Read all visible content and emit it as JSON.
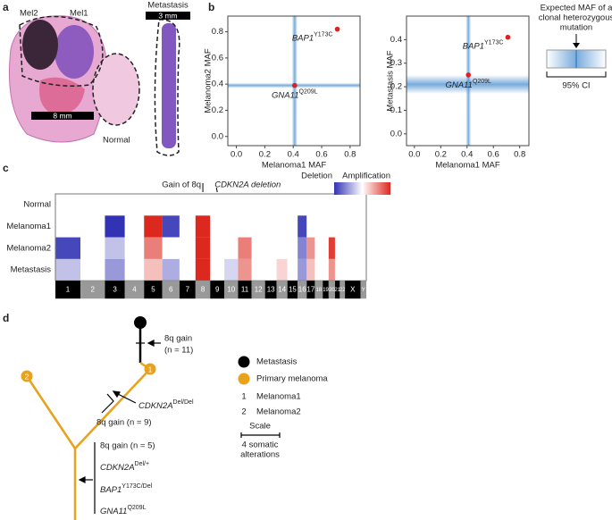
{
  "panel_labels": [
    "a",
    "b",
    "c",
    "d"
  ],
  "panel_a": {
    "labels": [
      "Mel2",
      "Mel1",
      "Normal",
      "Metastasis"
    ],
    "scale_bars": [
      "8 mm",
      "3 mm"
    ]
  },
  "chart_data": [
    {
      "type": "scatter",
      "xlabel": "Melanoma1 MAF",
      "ylabel": "Melanoma2 MAF",
      "xlim": [
        -0.06,
        0.87
      ],
      "ylim": [
        -0.07,
        0.92
      ],
      "xticks": [
        {
          "value": 0,
          "label": "0.0"
        },
        0.2,
        0.4,
        0.6,
        0.8
      ],
      "yticks": [
        {
          "value": 0,
          "label": "0.0"
        },
        0.2,
        0.4,
        0.6,
        0.8
      ],
      "x": [
        0.41,
        0.71
      ],
      "values": [
        0.39,
        0.82
      ],
      "color": "#e02020",
      "point_labels": [
        "GNA11",
        "BAP1"
      ],
      "point_label_sups": [
        "Q209L",
        "Y173C"
      ],
      "ci_x": [
        0.39,
        0.43
      ],
      "ci_y": [
        0.37,
        0.41
      ]
    },
    {
      "type": "scatter",
      "xlabel": "Melanoma1 MAF",
      "ylabel": "Metastasis MAF",
      "xlim": [
        -0.06,
        0.87
      ],
      "ylim": [
        -0.05,
        0.5
      ],
      "xticks": [
        {
          "value": 0,
          "label": "0.0"
        },
        0.2,
        0.4,
        0.6,
        0.8
      ],
      "yticks": [
        {
          "value": 0,
          "label": "0.0"
        },
        0.1,
        0.2,
        0.3,
        0.4
      ],
      "x": [
        0.41,
        0.71
      ],
      "values": [
        0.25,
        0.41
      ],
      "color": "#e02020",
      "point_labels": [
        "GNA11",
        "BAP1"
      ],
      "point_label_sups": [
        "Q209L",
        "Y173C"
      ],
      "ci_x": [
        0.39,
        0.43
      ],
      "ci_y": [
        0.17,
        0.25
      ]
    },
    {
      "type": "heatmap",
      "rows": [
        "Normal",
        "Melanoma1",
        "Melanoma2",
        "Metastasis"
      ],
      "categories": [
        "1",
        "2",
        "3",
        "4",
        "5",
        "6",
        "7",
        "8",
        "9",
        "10",
        "11",
        "12",
        "13",
        "14",
        "15",
        "16",
        "17",
        "18",
        "19",
        "20",
        "21",
        "22",
        "X",
        "Y"
      ],
      "chrom_sizes": [
        249,
        243,
        198,
        191,
        181,
        171,
        159,
        146,
        141,
        136,
        135,
        133,
        115,
        107,
        102,
        90,
        81,
        78,
        59,
        63,
        48,
        51,
        155,
        57
      ],
      "values": [
        [
          0,
          0,
          0,
          0,
          0,
          0,
          0,
          0,
          0,
          0,
          0,
          0,
          0,
          0,
          0,
          0,
          0,
          0,
          0,
          0,
          0,
          0,
          0,
          0
        ],
        [
          0,
          0,
          -1,
          0,
          1,
          -0.9,
          0,
          1,
          0,
          0,
          0,
          0,
          0,
          0,
          0,
          -0.9,
          0,
          0,
          0,
          0,
          0,
          0,
          0,
          0
        ],
        [
          -0.9,
          0,
          -0.3,
          0,
          0.6,
          0,
          0,
          1,
          0,
          0,
          0.6,
          0,
          0,
          0,
          0,
          -0.6,
          0.5,
          0,
          0,
          0.9,
          0,
          0,
          0,
          0
        ],
        [
          -0.3,
          0,
          -0.5,
          0,
          0.3,
          -0.4,
          0,
          1,
          0,
          -0.2,
          0.5,
          0,
          0,
          0.2,
          0,
          -0.5,
          0.3,
          0,
          0,
          0.5,
          0,
          0,
          0,
          0
        ]
      ],
      "legend_labels": [
        "Deletion",
        "Amplification"
      ],
      "annotations": [
        "Gain of 8q",
        "CDKN2A deletion"
      ]
    }
  ],
  "maf_legend": {
    "title_lines": [
      "Expected MAF of a",
      "clonal heterozygous",
      "mutation"
    ],
    "ci_label": "95% CI"
  },
  "panel_d": {
    "node_labels": [
      "1",
      "2"
    ],
    "events_met": [
      "8q gain",
      "(n = 11)"
    ],
    "events_branch": {
      "gene": "CDKN2A",
      "sup": "Del/Del",
      "gain": "8q gain (n = 9)"
    },
    "events_trunk": [
      {
        "text": "8q gain (n = 5)"
      },
      {
        "gene": "CDKN2A",
        "sup": "Del/+"
      },
      {
        "gene": "BAP1",
        "sup": "Y173C/Del"
      },
      {
        "gene": "GNA11",
        "sup": "Q209L"
      }
    ],
    "legend": [
      "Metastasis",
      "Primary melanoma",
      "1",
      "Melanoma1",
      "2",
      "Melanoma2",
      "Scale",
      "4 somatic",
      "alterations"
    ]
  }
}
